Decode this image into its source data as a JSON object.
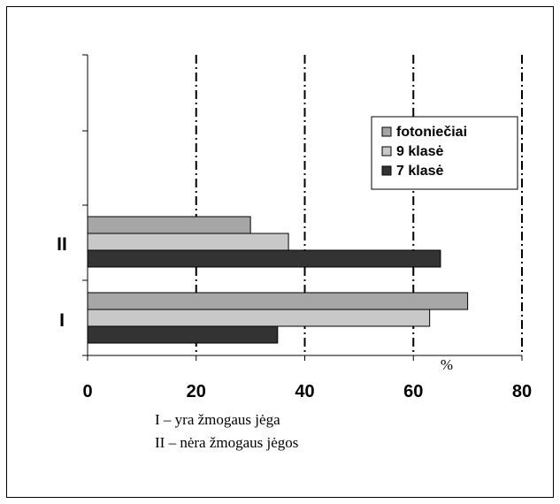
{
  "chart_data": {
    "type": "bar",
    "orientation": "horizontal",
    "categories": [
      "I",
      "II"
    ],
    "series": [
      {
        "name": "fotoniečiai",
        "values": [
          70,
          30
        ],
        "color": "#a6a6a6"
      },
      {
        "name": "9 klasė",
        "values": [
          63,
          37
        ],
        "color": "#c8c8c8"
      },
      {
        "name": "7 klasė",
        "values": [
          35,
          65
        ],
        "color": "#333333"
      }
    ],
    "xlim": [
      0,
      80
    ],
    "xticks": [
      "0",
      "20",
      "40",
      "60",
      "80"
    ],
    "unit": "%",
    "legend_position": "right",
    "grid": "dash-dot vertical"
  },
  "notes": [
    "I – yra žmogaus jėga",
    "II – nėra žmogaus jėgos"
  ]
}
